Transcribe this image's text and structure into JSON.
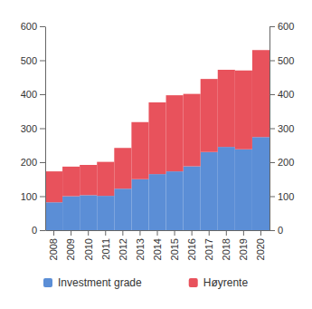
{
  "chart_data": {
    "type": "bar",
    "stacked": true,
    "categories": [
      "2008",
      "2009",
      "2010",
      "2011",
      "2012",
      "2013",
      "2014",
      "2015",
      "2016",
      "2017",
      "2018",
      "2019",
      "2020"
    ],
    "series": [
      {
        "name": "Investment grade",
        "color": "#5b8ed6",
        "values": [
          82,
          100,
          103,
          101,
          122,
          150,
          165,
          173,
          188,
          230,
          245,
          238,
          274
        ]
      },
      {
        "name": "Høyrente",
        "color": "#e8525c",
        "values": [
          91,
          87,
          89,
          100,
          120,
          168,
          211,
          224,
          213,
          215,
          227,
          232,
          256
        ]
      }
    ],
    "ylim": [
      0,
      600
    ],
    "yticks": [
      0,
      100,
      200,
      300,
      400,
      500,
      600
    ],
    "grid": false,
    "legend": "bottom"
  }
}
